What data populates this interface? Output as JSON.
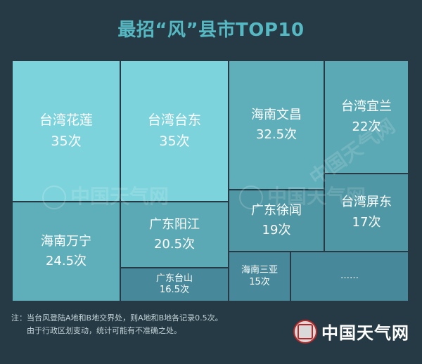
{
  "title": "最招“风”县市TOP10",
  "colors": {
    "background": "#253a44",
    "title": "#55b8c2",
    "tile_light": "#7dd3dc",
    "tile_mid": "#5fafbb",
    "tile_mid2": "#5ba9b5",
    "tile_dark": "#4f97a4",
    "tile_darker": "#47899a"
  },
  "chart_data": {
    "type": "treemap",
    "title": "最招“风”县市TOP10",
    "unit": "次",
    "items": [
      {
        "name": "台湾花莲",
        "value": 35,
        "label": "35次"
      },
      {
        "name": "台湾台东",
        "value": 35,
        "label": "35次"
      },
      {
        "name": "海南文昌",
        "value": 32.5,
        "label": "32.5次"
      },
      {
        "name": "台湾宜兰",
        "value": 22,
        "label": "22次"
      },
      {
        "name": "海南万宁",
        "value": 24.5,
        "label": "24.5次"
      },
      {
        "name": "广东阳江",
        "value": 20.5,
        "label": "20.5次"
      },
      {
        "name": "广东徐闻",
        "value": 19,
        "label": "19次"
      },
      {
        "name": "台湾屏东",
        "value": 17,
        "label": "17次"
      },
      {
        "name": "广东台山",
        "value": 16.5,
        "label": "16.5次"
      },
      {
        "name": "海南三亚",
        "value": 15,
        "label": "15次"
      },
      {
        "name": "……",
        "value": null,
        "label": ""
      }
    ]
  },
  "watermark": "中国天气网",
  "note": {
    "line1": "注：当台风登陆A地和B地交界处，则A地和B地各记录0.5次。",
    "line2": "由于行政区划变动，统计可能有不准确之处。"
  },
  "logo": {
    "text": "中国天气网"
  }
}
